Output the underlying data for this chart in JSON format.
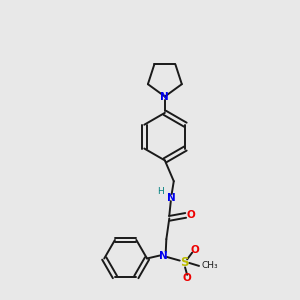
{
  "bg_color": "#e8e8e8",
  "bond_color": "#1a1a1a",
  "N_color": "#0000ee",
  "O_color": "#ee0000",
  "S_color": "#bbbb00",
  "H_color": "#008080",
  "lw": 1.4,
  "fs": 7.5,
  "xlim": [
    0,
    10
  ],
  "ylim": [
    0,
    10
  ]
}
